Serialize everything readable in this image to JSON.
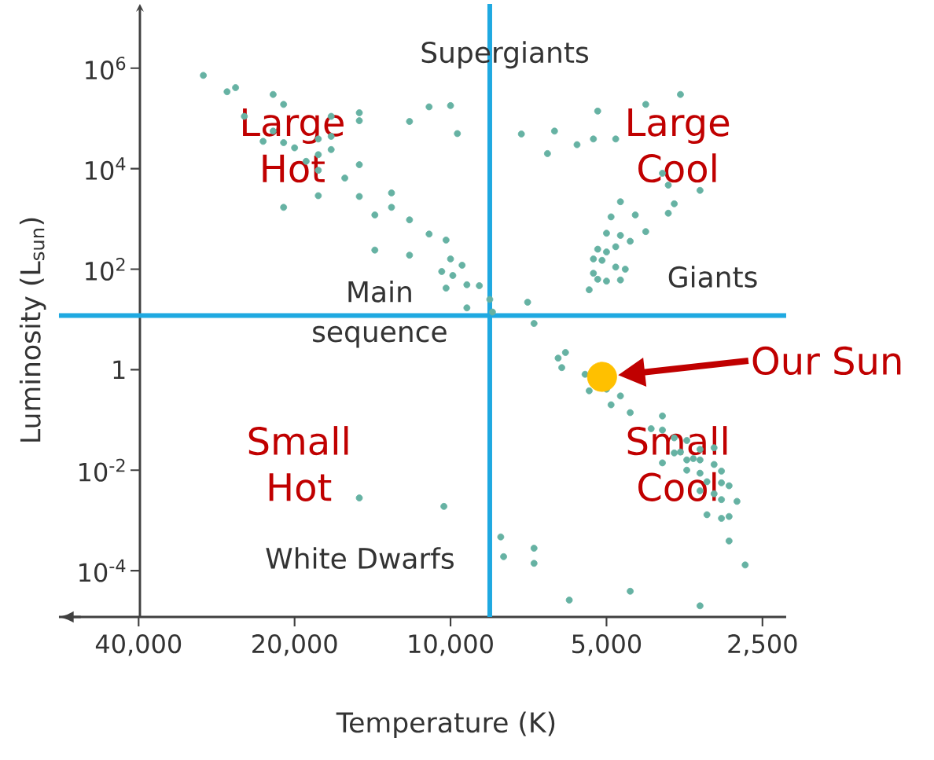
{
  "chart_data": {
    "type": "scatter",
    "xlabel": "Temperature (K)",
    "ylabel": "Luminosity (L$_{sun}$)",
    "log": "xy",
    "xlim": [
      57000,
      2250
    ],
    "ylim": [
      1.2e-05,
      19000000
    ],
    "xticks": [
      {
        "value": 40000,
        "label": "40,000"
      },
      {
        "value": 20000,
        "label": "20,000"
      },
      {
        "value": 10000,
        "label": "10,000"
      },
      {
        "value": 5000,
        "label": "5,000"
      },
      {
        "value": 2500,
        "label": "2,500"
      }
    ],
    "yticks": [
      {
        "value": 0.0001,
        "label": "10$^{-4}$"
      },
      {
        "value": 0.01,
        "label": "10$^{-2}$"
      },
      1,
      {
        "value": 100,
        "label": "10$^{2}$"
      },
      {
        "value": 10000,
        "label": "10$^{4}$"
      },
      {
        "value": 1000000,
        "label": "10$^{6}$"
      }
    ],
    "ref_lines": [
      {
        "axis": "x",
        "value": 8400,
        "color": "#1fa9e1"
      },
      {
        "axis": "y",
        "value": 12,
        "color": "#1fa9e1"
      }
    ],
    "annotations": [
      "Supergiants",
      "Large Hot",
      "Large Cool",
      "Giants",
      "Main sequence",
      "Small Hot",
      "Small Cool",
      "White Dwarfs"
    ],
    "series": [
      {
        "color": "#66b2a3",
        "x": [
          30000,
          27000,
          26000,
          22000,
          21000,
          25000,
          17000,
          15000,
          15000,
          12000,
          11000,
          10000,
          9700,
          22000,
          23000,
          21000,
          20000,
          18000,
          17000,
          18000,
          17000,
          19000,
          18000,
          15000,
          16000,
          18000,
          15000,
          13000,
          21000,
          14000,
          13000,
          12000,
          11000,
          10200,
          14000,
          12000,
          10000,
          9500,
          10400,
          9900,
          9300,
          8800,
          10200,
          9300,
          8400,
          8300,
          7100,
          6900,
          3600,
          4200,
          5200,
          7300,
          6300,
          6500,
          5700,
          5300,
          4800,
          3900,
          3800,
          3300,
          4700,
          3700,
          3800,
          4900,
          4400,
          5000,
          4700,
          4200,
          4500,
          5200,
          4800,
          5000,
          5300,
          5100,
          4800,
          4600,
          5300,
          5200,
          5000,
          4700,
          5400,
          6000,
          6200,
          6100,
          5500,
          5400,
          5000,
          4700,
          4900,
          4500,
          3900,
          4100,
          3900,
          3700,
          3500,
          3300,
          3100,
          3700,
          3600,
          3500,
          3400,
          3300,
          3100,
          3900,
          3500,
          3300,
          3000,
          3200,
          3000,
          2900,
          3300,
          3100,
          2800,
          3000,
          2900,
          3000,
          3200,
          2900,
          2700,
          8000,
          7900,
          6900,
          6900,
          5900,
          4500,
          3300,
          15000,
          10300
        ],
        "values": [
          720000,
          340000,
          410000,
          300000,
          190000,
          110000,
          110000,
          130000,
          90000,
          87000,
          170000,
          180000,
          50000,
          56000,
          35000,
          33000,
          26000,
          39000,
          44000,
          19000,
          24000,
          14000,
          9300,
          12000,
          6500,
          2900,
          2800,
          3300,
          1700,
          1200,
          1700,
          960,
          500,
          380,
          240,
          190,
          160,
          120,
          90,
          75,
          49,
          47,
          42,
          17,
          25,
          14,
          22,
          8.3,
          300000,
          190000,
          140000,
          49000,
          56000,
          20000,
          30000,
          39000,
          39000,
          8100,
          4700,
          3700,
          2200,
          2000,
          1300,
          1100,
          1200,
          520,
          470,
          560,
          360,
          250,
          280,
          220,
          160,
          150,
          110,
          100,
          83,
          63,
          58,
          61,
          39,
          2.2,
          1.7,
          1.1,
          0.81,
          0.38,
          0.41,
          0.3,
          0.2,
          0.14,
          0.12,
          0.067,
          0.063,
          0.044,
          0.039,
          0.026,
          0.028,
          0.022,
          0.023,
          0.016,
          0.017,
          0.016,
          0.013,
          0.014,
          0.01,
          0.0087,
          0.0096,
          0.0059,
          0.0056,
          0.0049,
          0.0039,
          0.0034,
          0.0024,
          0.0026,
          0.0012,
          0.0011,
          0.0013,
          0.00039,
          0.00013,
          0.00047,
          0.00019,
          0.00028,
          0.00014,
          2.6e-05,
          3.9e-05,
          2e-05,
          0.0028,
          0.0019
        ]
      },
      {
        "name": "Our Sun",
        "color": "#ffc000",
        "x": [
          5100
        ],
        "values": [
          0.72
        ]
      }
    ]
  }
}
